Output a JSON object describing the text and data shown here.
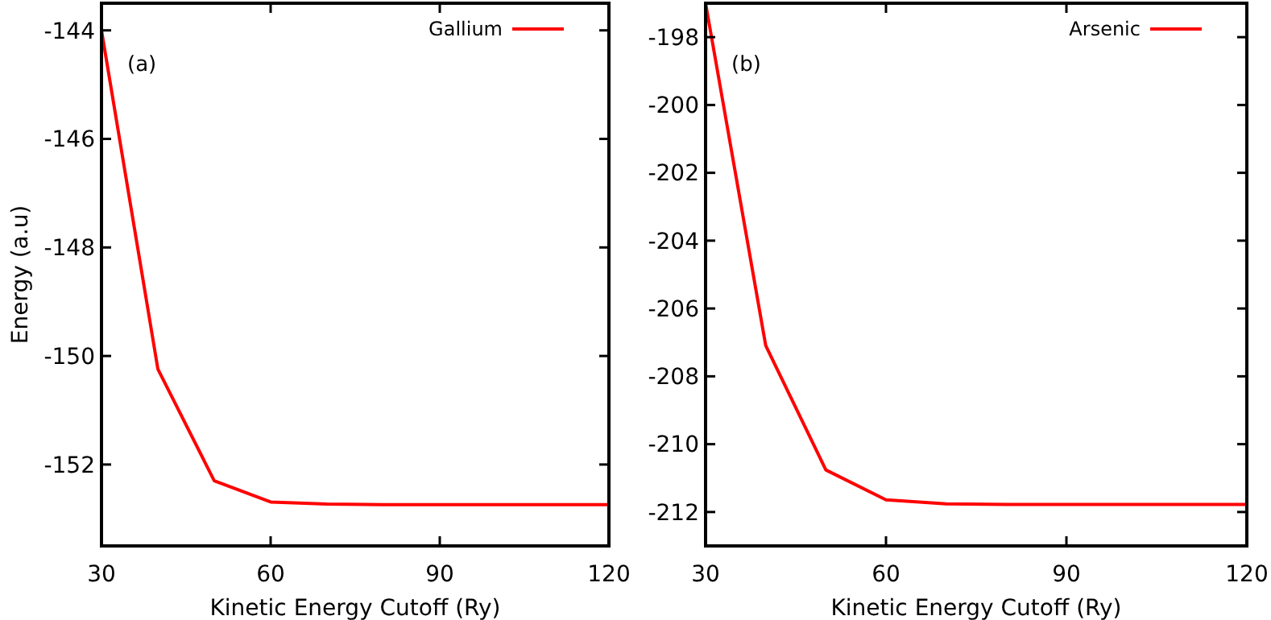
{
  "chart_data": [
    {
      "type": "line",
      "xlabel": "Kinetic Energy Cutoff (Ry)",
      "ylabel": "Energy (a.u)",
      "annotations": [
        "(a)"
      ],
      "x": [
        30,
        40,
        50,
        60,
        70,
        80,
        90,
        100,
        110,
        120
      ],
      "xlim": [
        30,
        120
      ],
      "xticks": [
        30,
        60,
        90,
        120
      ],
      "ylim": [
        -153.5,
        -143.5
      ],
      "yticks": [
        -144,
        -146,
        -148,
        -150,
        -152
      ],
      "legend": "top right",
      "grid": false,
      "marker": "none",
      "line_style": "solid",
      "series": [
        {
          "name": "Gallium",
          "color": "#ff0000",
          "values": [
            -144.0,
            -150.24,
            -152.3,
            -152.69,
            -152.73,
            -152.74,
            -152.74,
            -152.74,
            -152.74,
            -152.74
          ]
        }
      ]
    },
    {
      "type": "line",
      "xlabel": "Kinetic Energy Cutoff (Ry)",
      "annotations": [
        "(b)"
      ],
      "x": [
        30,
        40,
        50,
        60,
        70,
        80,
        90,
        100,
        110,
        120
      ],
      "xlim": [
        30,
        120
      ],
      "xticks": [
        30,
        60,
        90,
        120
      ],
      "ylim": [
        -213,
        -197
      ],
      "yticks": [
        -198,
        -200,
        -202,
        -204,
        -206,
        -208,
        -210,
        -212
      ],
      "legend": "top right",
      "grid": false,
      "marker": "none",
      "line_style": "solid",
      "series": [
        {
          "name": "Arsenic",
          "color": "#ff0000",
          "values": [
            -197.0,
            -207.09,
            -210.76,
            -211.64,
            -211.76,
            -211.78,
            -211.78,
            -211.78,
            -211.78,
            -211.78
          ]
        }
      ]
    }
  ]
}
